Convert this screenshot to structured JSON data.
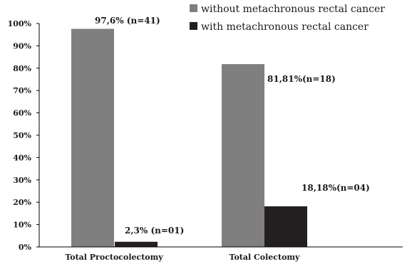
{
  "chart_data": {
    "type": "bar",
    "title": "",
    "xlabel": "",
    "ylabel": "",
    "ylim": [
      0,
      100
    ],
    "yticks": [
      0,
      10,
      20,
      30,
      40,
      50,
      60,
      70,
      80,
      90,
      100
    ],
    "ytick_labels": [
      "0%",
      "10%",
      "20%",
      "30%",
      "40%",
      "50%",
      "60%",
      "70%",
      "80%",
      "90%",
      "100%"
    ],
    "grid": false,
    "legend_position": "top-right",
    "categories": [
      "Total Proctocolectomy",
      "Total Colectomy"
    ],
    "series": [
      {
        "name": "without metachronous rectal  cancer",
        "color": "#7f7f7f",
        "values": [
          97.6,
          81.81
        ],
        "labels": [
          "97,6% (n=41)",
          "81,81%(n=18)"
        ]
      },
      {
        "name": "with metachronous rectal cancer",
        "color": "#231f20",
        "values": [
          2.3,
          18.18
        ],
        "labels": [
          "2,3% (n=01)",
          "18,18%(n=04)"
        ]
      }
    ]
  }
}
